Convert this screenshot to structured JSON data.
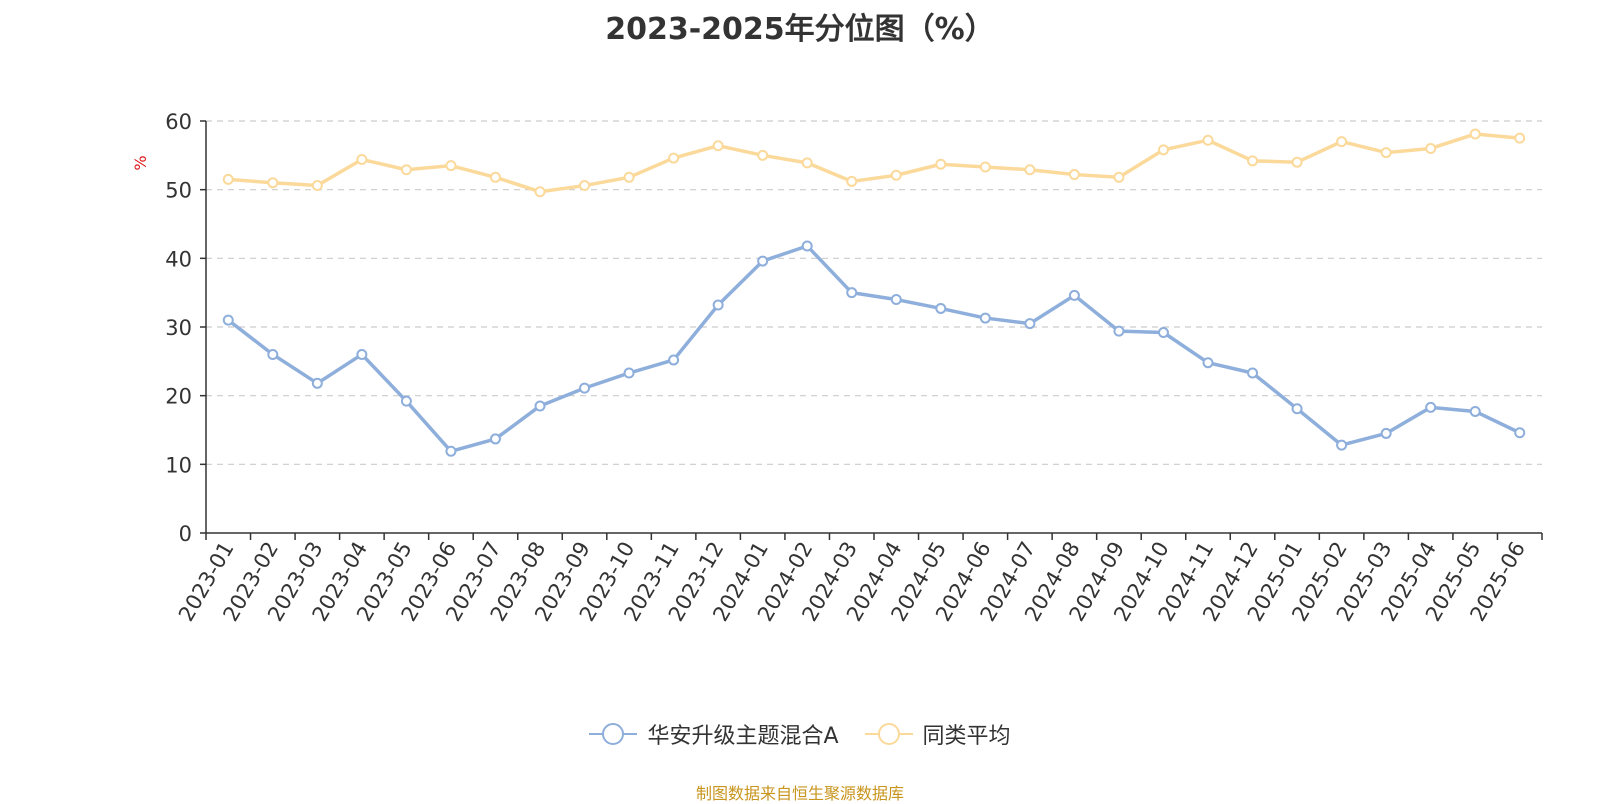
{
  "chart_data": {
    "type": "line",
    "title": "2023-2025年分位图（%）",
    "ylabel": "%",
    "xlabel": "",
    "ylim": [
      0,
      60
    ],
    "yticks": [
      0,
      10,
      20,
      30,
      40,
      50,
      60
    ],
    "grid": true,
    "legend_position": "bottom",
    "categories": [
      "2023-01",
      "2023-02",
      "2023-03",
      "2023-04",
      "2023-05",
      "2023-06",
      "2023-07",
      "2023-08",
      "2023-09",
      "2023-10",
      "2023-11",
      "2023-12",
      "2024-01",
      "2024-02",
      "2024-03",
      "2024-04",
      "2024-05",
      "2024-06",
      "2024-07",
      "2024-08",
      "2024-09",
      "2024-10",
      "2024-11",
      "2024-12",
      "2025-01",
      "2025-02",
      "2025-03",
      "2025-04",
      "2025-05",
      "2025-06"
    ],
    "series": [
      {
        "name": "华安升级主题混合A",
        "color": "#8eaedb",
        "values": [
          31.0,
          26.0,
          21.8,
          26.0,
          19.2,
          11.9,
          13.7,
          18.5,
          21.1,
          23.3,
          25.2,
          33.2,
          39.6,
          41.8,
          35.0,
          34.0,
          32.7,
          31.3,
          30.5,
          34.6,
          29.4,
          29.2,
          24.8,
          23.3,
          18.1,
          12.8,
          14.5,
          18.3,
          17.7,
          14.6
        ]
      },
      {
        "name": "同类平均",
        "color": "#fbd99b",
        "values": [
          51.5,
          51.0,
          50.6,
          54.4,
          52.9,
          53.5,
          51.8,
          49.7,
          50.6,
          51.8,
          54.6,
          56.4,
          55.0,
          53.9,
          51.2,
          52.1,
          53.7,
          53.3,
          52.9,
          52.2,
          51.8,
          55.8,
          57.2,
          54.2,
          54.0,
          57.0,
          55.4,
          56.0,
          58.1,
          57.5
        ]
      }
    ]
  },
  "source": "制图数据来自恒生聚源数据库"
}
